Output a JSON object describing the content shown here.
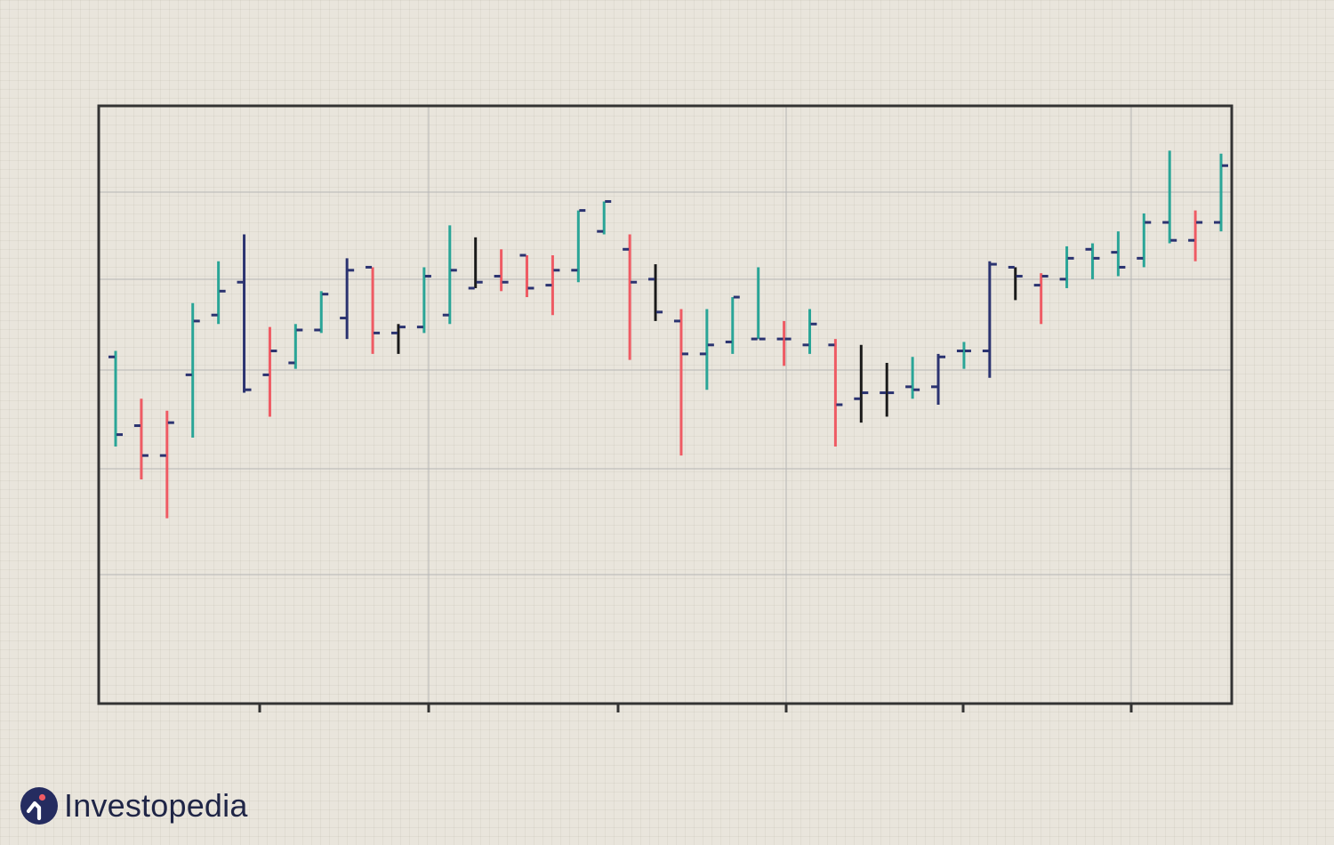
{
  "brand": {
    "name": "Investopedia",
    "logo_icon": "investopedia-i-icon",
    "colors": {
      "navy": "#252c60",
      "red": "#ef5b64"
    }
  },
  "chart_data": {
    "type": "ohlc",
    "title": "",
    "xlabel": "",
    "ylabel": "",
    "grid": true,
    "ylim": [
      0,
      100
    ],
    "colors": {
      "teal": "#2aa597",
      "red": "#ef5b64",
      "navy": "#2b3370",
      "black": "#1a1a1a",
      "tick": "#2b3370"
    },
    "bars": [
      {
        "o": 58,
        "h": 59,
        "l": 43,
        "c": 45,
        "color": "teal"
      },
      {
        "o": 46.5,
        "h": 51,
        "l": 37.5,
        "c": 41.5,
        "color": "red"
      },
      {
        "o": 41.5,
        "h": 49,
        "l": 31,
        "c": 47,
        "color": "red"
      },
      {
        "o": 55,
        "h": 67,
        "l": 44.5,
        "c": 64,
        "color": "teal"
      },
      {
        "o": 65,
        "h": 74,
        "l": 63.5,
        "c": 69,
        "color": "teal"
      },
      {
        "o": 70.5,
        "h": 78.5,
        "l": 52,
        "c": 52.5,
        "color": "navy"
      },
      {
        "o": 55,
        "h": 63,
        "l": 48,
        "c": 59,
        "color": "red"
      },
      {
        "o": 57,
        "h": 63.5,
        "l": 56,
        "c": 62.5,
        "color": "teal"
      },
      {
        "o": 62.5,
        "h": 69,
        "l": 62,
        "c": 68.5,
        "color": "teal"
      },
      {
        "o": 64.5,
        "h": 74.5,
        "l": 61,
        "c": 72.5,
        "color": "navy"
      },
      {
        "o": 73,
        "h": 73,
        "l": 58.5,
        "c": 62,
        "color": "red"
      },
      {
        "o": 62,
        "h": 63.5,
        "l": 58.5,
        "c": 63,
        "color": "black"
      },
      {
        "o": 63,
        "h": 73,
        "l": 62,
        "c": 71.5,
        "color": "teal"
      },
      {
        "o": 65,
        "h": 80,
        "l": 63.5,
        "c": 72.5,
        "color": "teal"
      },
      {
        "o": 69.5,
        "h": 78,
        "l": 69.5,
        "c": 70.5,
        "color": "black"
      },
      {
        "o": 71.5,
        "h": 76,
        "l": 69,
        "c": 70.5,
        "color": "red"
      },
      {
        "o": 75,
        "h": 75,
        "l": 68,
        "c": 69.5,
        "color": "red"
      },
      {
        "o": 70,
        "h": 75,
        "l": 65,
        "c": 72.5,
        "color": "red"
      },
      {
        "o": 72.5,
        "h": 82.5,
        "l": 70.5,
        "c": 82.5,
        "color": "teal"
      },
      {
        "o": 79,
        "h": 84,
        "l": 78.5,
        "c": 84,
        "color": "teal"
      },
      {
        "o": 76,
        "h": 78.5,
        "l": 57.5,
        "c": 70.5,
        "color": "red"
      },
      {
        "o": 71,
        "h": 73.5,
        "l": 64,
        "c": 65.5,
        "color": "black"
      },
      {
        "o": 64,
        "h": 66,
        "l": 41.5,
        "c": 58.5,
        "color": "red"
      },
      {
        "o": 58.5,
        "h": 66,
        "l": 52.5,
        "c": 60,
        "color": "teal"
      },
      {
        "o": 60.5,
        "h": 68,
        "l": 58.5,
        "c": 68,
        "color": "teal"
      },
      {
        "o": 61,
        "h": 73,
        "l": 61,
        "c": 61,
        "color": "teal"
      },
      {
        "o": 61,
        "h": 64,
        "l": 56.5,
        "c": 61,
        "color": "red"
      },
      {
        "o": 60,
        "h": 66,
        "l": 58.5,
        "c": 63.5,
        "color": "teal"
      },
      {
        "o": 60,
        "h": 61,
        "l": 43,
        "c": 50,
        "color": "red"
      },
      {
        "o": 51,
        "h": 60,
        "l": 47,
        "c": 52,
        "color": "black"
      },
      {
        "o": 52,
        "h": 57,
        "l": 48,
        "c": 52,
        "color": "black"
      },
      {
        "o": 53,
        "h": 58,
        "l": 51,
        "c": 52.5,
        "color": "teal"
      },
      {
        "o": 53,
        "h": 58.5,
        "l": 50,
        "c": 58,
        "color": "navy"
      },
      {
        "o": 59,
        "h": 60.5,
        "l": 56,
        "c": 59,
        "color": "teal"
      },
      {
        "o": 59,
        "h": 74,
        "l": 54.5,
        "c": 73.5,
        "color": "navy"
      },
      {
        "o": 73,
        "h": 73,
        "l": 67.5,
        "c": 71.5,
        "color": "black"
      },
      {
        "o": 70,
        "h": 72,
        "l": 63.5,
        "c": 71.5,
        "color": "red"
      },
      {
        "o": 71,
        "h": 76.5,
        "l": 69.5,
        "c": 74.5,
        "color": "teal"
      },
      {
        "o": 76,
        "h": 77,
        "l": 71,
        "c": 74.5,
        "color": "teal"
      },
      {
        "o": 75.5,
        "h": 79,
        "l": 71.5,
        "c": 73,
        "color": "teal"
      },
      {
        "o": 74.5,
        "h": 82,
        "l": 73,
        "c": 80.5,
        "color": "teal"
      },
      {
        "o": 80.5,
        "h": 92.5,
        "l": 77,
        "c": 77.5,
        "color": "teal"
      },
      {
        "o": 77.5,
        "h": 82.5,
        "l": 74,
        "c": 80.5,
        "color": "red"
      },
      {
        "o": 80.5,
        "h": 92,
        "l": 79,
        "c": 90,
        "color": "teal"
      }
    ]
  }
}
